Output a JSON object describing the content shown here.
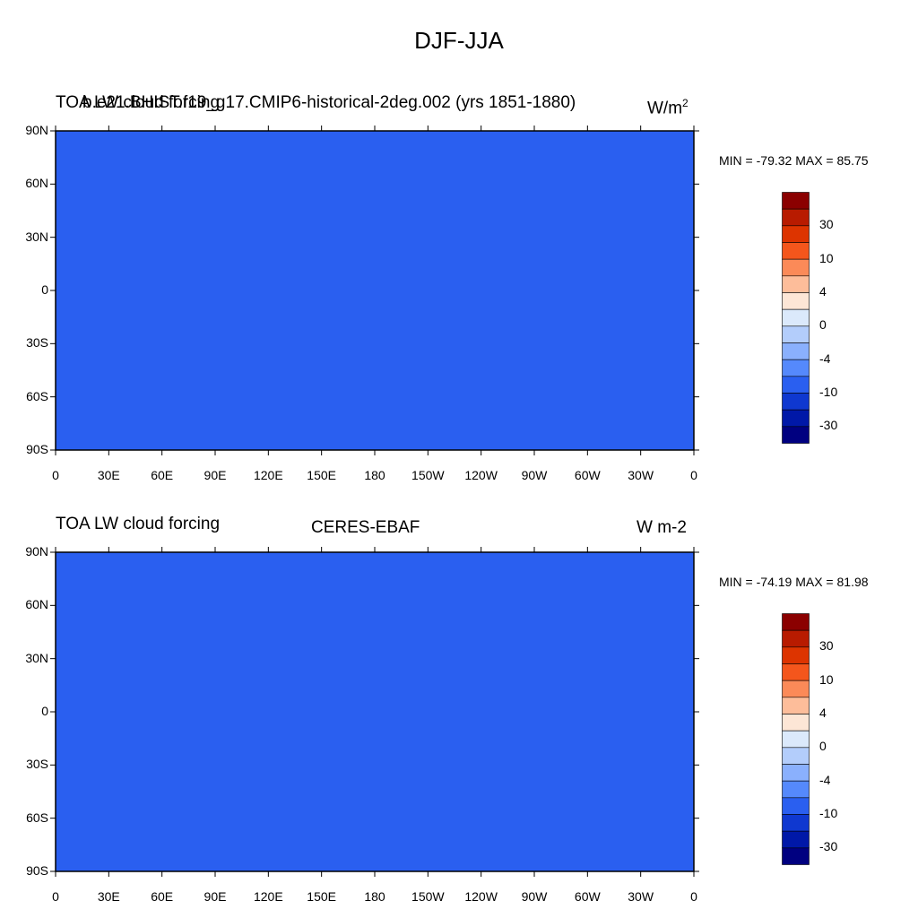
{
  "figure": {
    "title": "DJF-JJA"
  },
  "panels": [
    {
      "left_title": "TOA LW cloud forcing",
      "center_title": "b.e21.BHIST.f19_g17.CMIP6-historical-2deg.002 (yrs 1851-1880)",
      "units": "W/m",
      "units_sup": "2",
      "min_max": "MIN = -79.32 MAX =  85.75"
    },
    {
      "left_title": "TOA LW cloud forcing",
      "center_title": "CERES-EBAF",
      "units": "W m-2",
      "min_max": "MIN = -74.19 MAX =  81.98"
    }
  ],
  "chart_data": {
    "type": "map-contour",
    "title": "DJF-JJA",
    "variable": "TOA LW cloud forcing",
    "x_ticks": [
      "0",
      "30E",
      "60E",
      "90E",
      "120E",
      "150E",
      "180",
      "150W",
      "120W",
      "90W",
      "60W",
      "30W",
      "0"
    ],
    "y_ticks": [
      "90N",
      "60N",
      "30N",
      "0",
      "30S",
      "60S",
      "90S"
    ],
    "colorbar": {
      "labels": [
        "30",
        "10",
        "4",
        "0",
        "-4",
        "-10",
        "-30"
      ],
      "colors": [
        "#8b0000",
        "#b81b00",
        "#dd3400",
        "#f4561c",
        "#fb8a58",
        "#fdbd9a",
        "#fde6d6",
        "#dbe9fb",
        "#b3cdfb",
        "#8ab0fd",
        "#5589fc",
        "#2a5ff0",
        "#0f38d0",
        "#0018a8",
        "#000080"
      ]
    },
    "panels": [
      {
        "name": "b.e21.BHIST.f19_g17.CMIP6-historical-2deg.002 (yrs 1851-1880)",
        "min": -79.32,
        "max": 85.75
      },
      {
        "name": "CERES-EBAF",
        "min": -74.19,
        "max": 81.98
      }
    ]
  }
}
